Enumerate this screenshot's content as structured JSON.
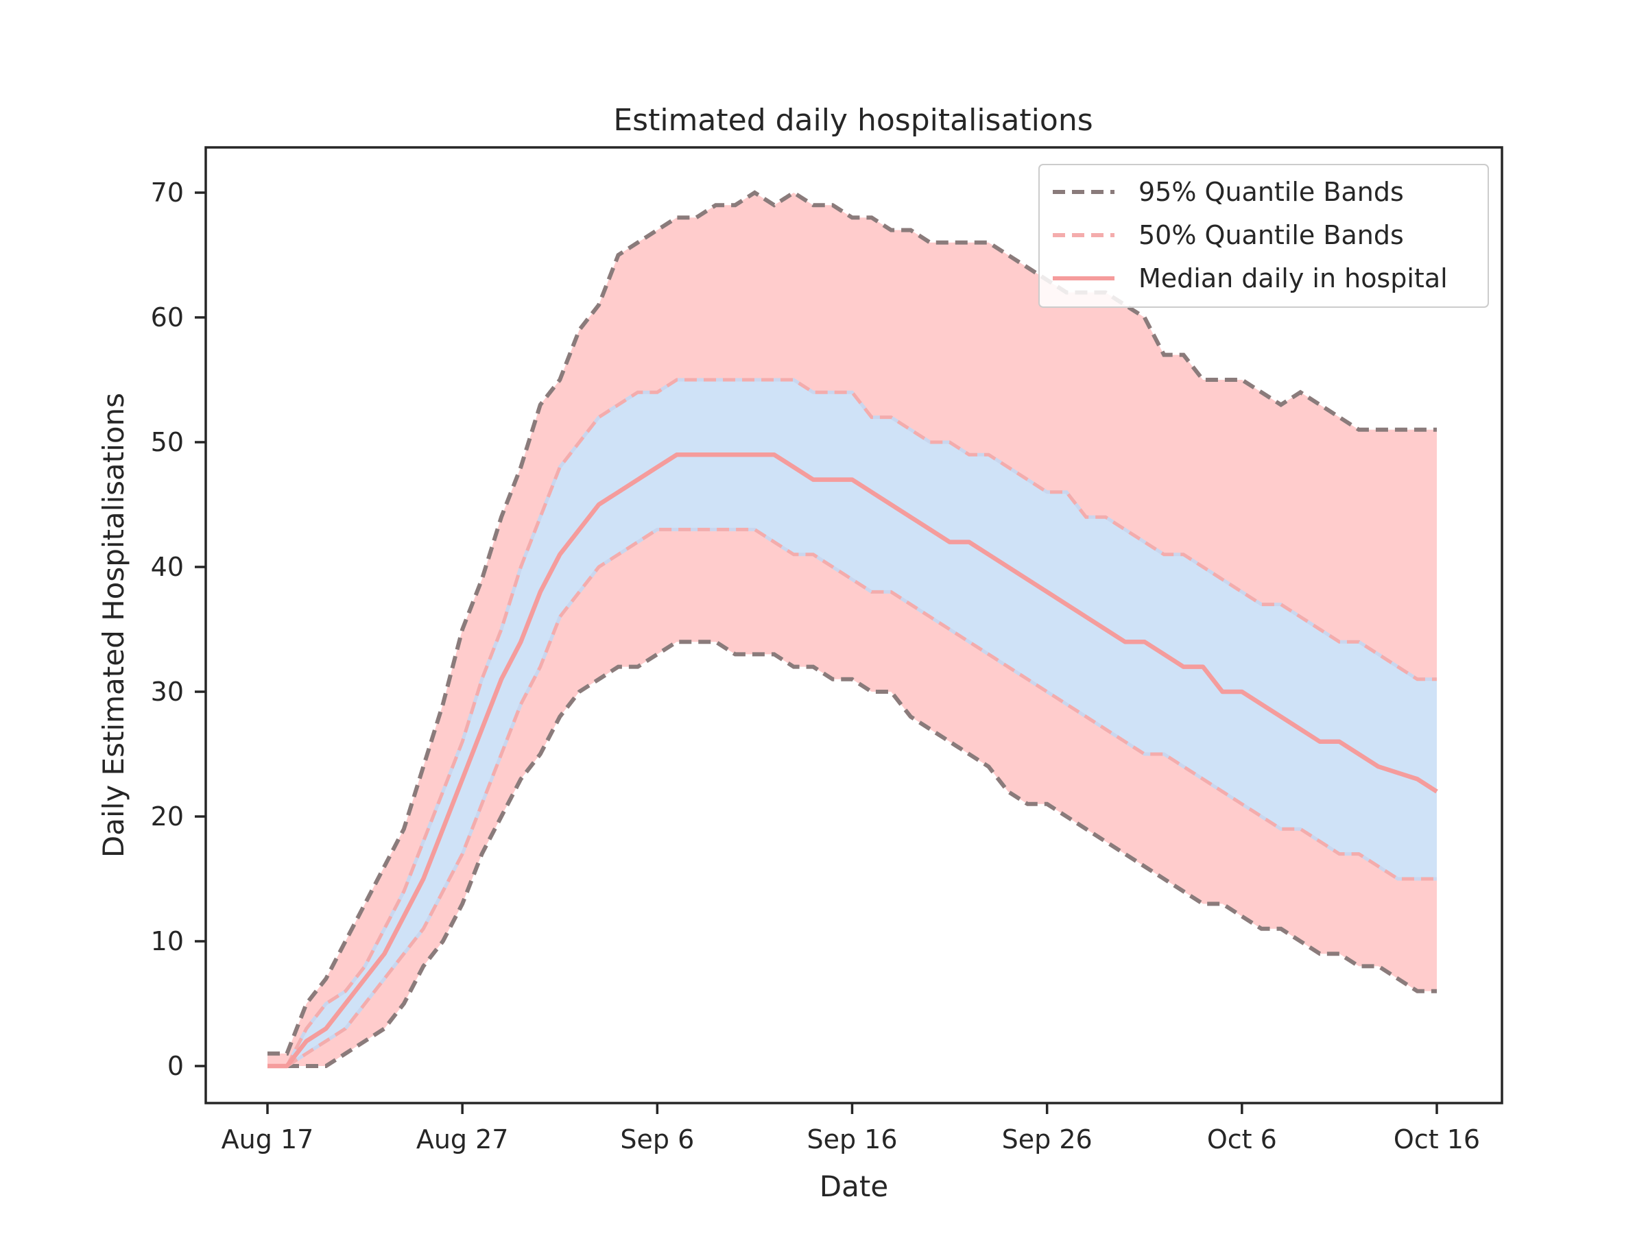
{
  "chart_data": {
    "type": "area",
    "title": "Estimated daily hospitalisations",
    "xlabel": "Date",
    "ylabel": "Daily Estimated Hospitalisations",
    "x_start": "Aug 17",
    "x_end": "Oct 16",
    "x_step": "1 day",
    "xticks": [
      {
        "date": "Aug 17",
        "label": "Aug 17"
      },
      {
        "date": "Aug 27",
        "label": "Aug 27"
      },
      {
        "date": "Sep 6",
        "label": "Sep 6"
      },
      {
        "date": "Sep 16",
        "label": "Sep 16"
      },
      {
        "date": "Sep 26",
        "label": "Sep 26"
      },
      {
        "date": "Oct 6",
        "label": "Oct 6"
      },
      {
        "date": "Oct 16",
        "label": "Oct 16"
      }
    ],
    "yticks": [
      0,
      10,
      20,
      30,
      40,
      50,
      60,
      70
    ],
    "ylim": [
      -3.5,
      73.5
    ],
    "xlim": [
      "Aug 14",
      "Oct 19"
    ],
    "grid": false,
    "legend": {
      "placement": "upper right",
      "entries": [
        {
          "label": "95% Quantile Bands",
          "style": "dashed",
          "color": "#7f7f7f"
        },
        {
          "label": "50% Quantile Bands",
          "style": "dashed",
          "color": "#f4a6a6"
        },
        {
          "label": "Median daily in hospital",
          "style": "solid",
          "color": "#f59c9c"
        }
      ]
    },
    "colors": {
      "outer_band_fill": "#ffcccc",
      "inner_band_fill": "#cfe2f7",
      "q95_line": "#8a7b7b",
      "q50_line": "#f4acac",
      "q50_line_gaps": "#c9d6ee",
      "median_line": "#f59c9c",
      "axes": "#262626"
    },
    "series": [
      {
        "name": "95% upper",
        "values": [
          1,
          1,
          5,
          7,
          10,
          13,
          16,
          19,
          24,
          29,
          35,
          39,
          44,
          48,
          53,
          55,
          59,
          61,
          65,
          66,
          67,
          68,
          68,
          69,
          69,
          70,
          69,
          70,
          69,
          69,
          68,
          68,
          67,
          67,
          66,
          66,
          66,
          66,
          65,
          64,
          63,
          62,
          62,
          62,
          61,
          60,
          57,
          57,
          55,
          55,
          55,
          54,
          53,
          54,
          53,
          52,
          51,
          51,
          51,
          51,
          51
        ]
      },
      {
        "name": "50% upper",
        "values": [
          0,
          0,
          3,
          5,
          6,
          8,
          11,
          14,
          18,
          22,
          26,
          31,
          35,
          40,
          44,
          48,
          50,
          52,
          53,
          54,
          54,
          55,
          55,
          55,
          55,
          55,
          55,
          55,
          54,
          54,
          54,
          52,
          52,
          51,
          50,
          50,
          49,
          49,
          48,
          47,
          46,
          46,
          44,
          44,
          43,
          42,
          41,
          41,
          40,
          39,
          38,
          37,
          37,
          36,
          35,
          34,
          34,
          33,
          32,
          31,
          31
        ]
      },
      {
        "name": "Median daily in hospital",
        "values": [
          0,
          0,
          2,
          3,
          5,
          7,
          9,
          12,
          15,
          19,
          23,
          27,
          31,
          34,
          38,
          41,
          43,
          45,
          46,
          47,
          48,
          49,
          49,
          49,
          49,
          49,
          49,
          48,
          47,
          47,
          47,
          46,
          45,
          44,
          43,
          42,
          42,
          41,
          40,
          39,
          38,
          37,
          36,
          35,
          34,
          34,
          33,
          32,
          32,
          30,
          30,
          29,
          28,
          27,
          26,
          26,
          25,
          24,
          23.5,
          23,
          22
        ]
      },
      {
        "name": "50% lower",
        "values": [
          0,
          0,
          1,
          2,
          3,
          5,
          7,
          9,
          11,
          14,
          17,
          21,
          25,
          29,
          32,
          36,
          38,
          40,
          41,
          42,
          43,
          43,
          43,
          43,
          43,
          43,
          42,
          41,
          41,
          40,
          39,
          38,
          38,
          37,
          36,
          35,
          34,
          33,
          32,
          31,
          30,
          29,
          28,
          27,
          26,
          25,
          25,
          24,
          23,
          22,
          21,
          20,
          19,
          19,
          18,
          17,
          17,
          16,
          15,
          15,
          15
        ]
      },
      {
        "name": "95% lower",
        "values": [
          0,
          0,
          0,
          0,
          1,
          2,
          3,
          5,
          8,
          10,
          13,
          17,
          20,
          23,
          25,
          28,
          30,
          31,
          32,
          32,
          33,
          34,
          34,
          34,
          33,
          33,
          33,
          32,
          32,
          31,
          31,
          30,
          30,
          28,
          27,
          26,
          25,
          24,
          22,
          21,
          21,
          20,
          19,
          18,
          17,
          16,
          15,
          14,
          13,
          13,
          12,
          11,
          11,
          10,
          9,
          9,
          8,
          8,
          7,
          6,
          6
        ]
      }
    ]
  }
}
